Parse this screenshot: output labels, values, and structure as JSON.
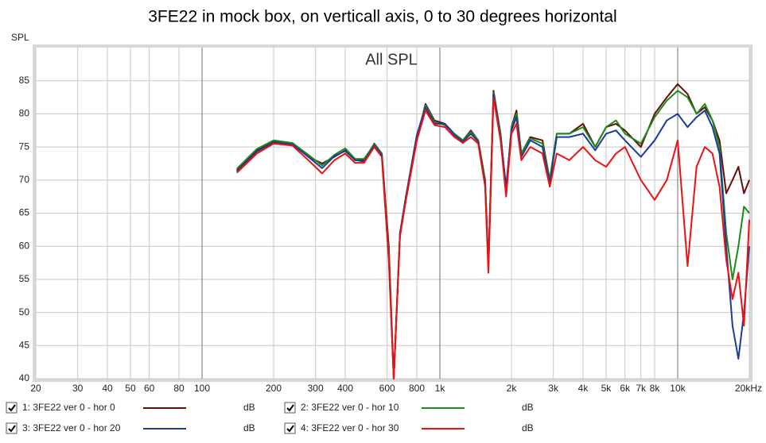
{
  "chart_data": {
    "type": "line",
    "title": "3FE22 in mock box, on verticall axis, 0 to 30 degrees horizontal",
    "subtitle": "All SPL",
    "y_label": "SPL",
    "log_x": true,
    "grid": true,
    "xlim": [
      20,
      20000
    ],
    "ylim": [
      40,
      90
    ],
    "xticks": [
      20,
      30,
      40,
      50,
      60,
      80,
      100,
      200,
      300,
      400,
      600,
      800,
      {
        "value": 1000,
        "label": "1k"
      },
      {
        "value": 2000,
        "label": "2k"
      },
      {
        "value": 3000,
        "label": "3k"
      },
      {
        "value": 4000,
        "label": "4k"
      },
      {
        "value": 5000,
        "label": "5k"
      },
      {
        "value": 6000,
        "label": "6k"
      },
      {
        "value": 7000,
        "label": "7k"
      },
      {
        "value": 8000,
        "label": "8k"
      },
      {
        "value": 10000,
        "label": "10k"
      },
      {
        "value": 20000,
        "label": "20kHz"
      }
    ],
    "yticks": [
      40,
      45,
      50,
      55,
      60,
      65,
      70,
      75,
      80,
      85
    ],
    "x": [
      140,
      170,
      200,
      240,
      280,
      320,
      360,
      400,
      440,
      480,
      530,
      570,
      610,
      640,
      680,
      720,
      800,
      870,
      950,
      1050,
      1150,
      1250,
      1350,
      1450,
      1550,
      1600,
      1680,
      1800,
      1900,
      2000,
      2100,
      2200,
      2400,
      2700,
      2900,
      3100,
      3500,
      4000,
      4500,
      5000,
      5500,
      6000,
      7000,
      8000,
      9000,
      10000,
      11000,
      12000,
      13000,
      14000,
      15000,
      16000,
      17000,
      18000,
      19000,
      20000
    ],
    "series": [
      {
        "name": "1: 3FE22 ver 0 - hor 0",
        "unit": "dB",
        "color": "#6b0a0a",
        "values": [
          71.5,
          74.5,
          75.8,
          75.5,
          73.5,
          72.5,
          73.5,
          74.5,
          73,
          73,
          75.5,
          74,
          60,
          40,
          62,
          67,
          76,
          81.5,
          79,
          78.5,
          77,
          76,
          77.5,
          76,
          70,
          57,
          83.5,
          77,
          68,
          78,
          80.5,
          74,
          76.5,
          76,
          70,
          77,
          77,
          78.5,
          75,
          78,
          78.5,
          77.5,
          75,
          80,
          82.5,
          84.5,
          83,
          80,
          81,
          79,
          76,
          68,
          70,
          72,
          68,
          70
        ]
      },
      {
        "name": "2: 3FE22 ver 0 - hor 10",
        "unit": "dB",
        "color": "#1a8c1a",
        "values": [
          71.7,
          74.7,
          76,
          75.6,
          73.8,
          72.2,
          73.8,
          74.8,
          73.2,
          73.2,
          75.4,
          74,
          59,
          40,
          62,
          67.5,
          76.5,
          81.3,
          78.8,
          78.3,
          77,
          76,
          77.3,
          76,
          70,
          57,
          83.2,
          77,
          68.5,
          77.8,
          80,
          74,
          76.3,
          75.5,
          70,
          77,
          77,
          78,
          75,
          78,
          79,
          77,
          75.5,
          79.5,
          82,
          83.5,
          82.5,
          80,
          81.5,
          79,
          75,
          62,
          55,
          60,
          66,
          65
        ]
      },
      {
        "name": "3: 3FE22 ver 0 - hor 20",
        "unit": "dB",
        "color": "#1a3c9a",
        "values": [
          71.3,
          74.3,
          75.7,
          75.4,
          73.5,
          71.8,
          73.6,
          74.4,
          73,
          72.8,
          75.2,
          73.8,
          58,
          40,
          62,
          67.5,
          76.8,
          81,
          78.5,
          78.5,
          76.8,
          75.8,
          77,
          75.8,
          69.5,
          57,
          83,
          76.5,
          69,
          77.5,
          79.5,
          73.5,
          76,
          75,
          69.5,
          76.5,
          76.5,
          77,
          74.5,
          77,
          77.5,
          76,
          73.5,
          76,
          79,
          80,
          78,
          79.5,
          80.5,
          78,
          74,
          60,
          48,
          43,
          50,
          60
        ]
      },
      {
        "name": "4: 3FE22 ver 0 - hor 30",
        "unit": "dB",
        "color": "#ee1111",
        "values": [
          71.1,
          74,
          75.5,
          75.2,
          73,
          71,
          73,
          74,
          72.6,
          72.6,
          75,
          73.5,
          58,
          40,
          61.5,
          67,
          76,
          80.5,
          78.3,
          78,
          76.5,
          75.6,
          76.5,
          75.5,
          69,
          56,
          82.5,
          76,
          67.5,
          77,
          78.5,
          73,
          75,
          74,
          69,
          74,
          73,
          75,
          73,
          72,
          74,
          75,
          70,
          67,
          70,
          76,
          57,
          72,
          75,
          74,
          69,
          58,
          52,
          56,
          48,
          64
        ]
      }
    ]
  }
}
